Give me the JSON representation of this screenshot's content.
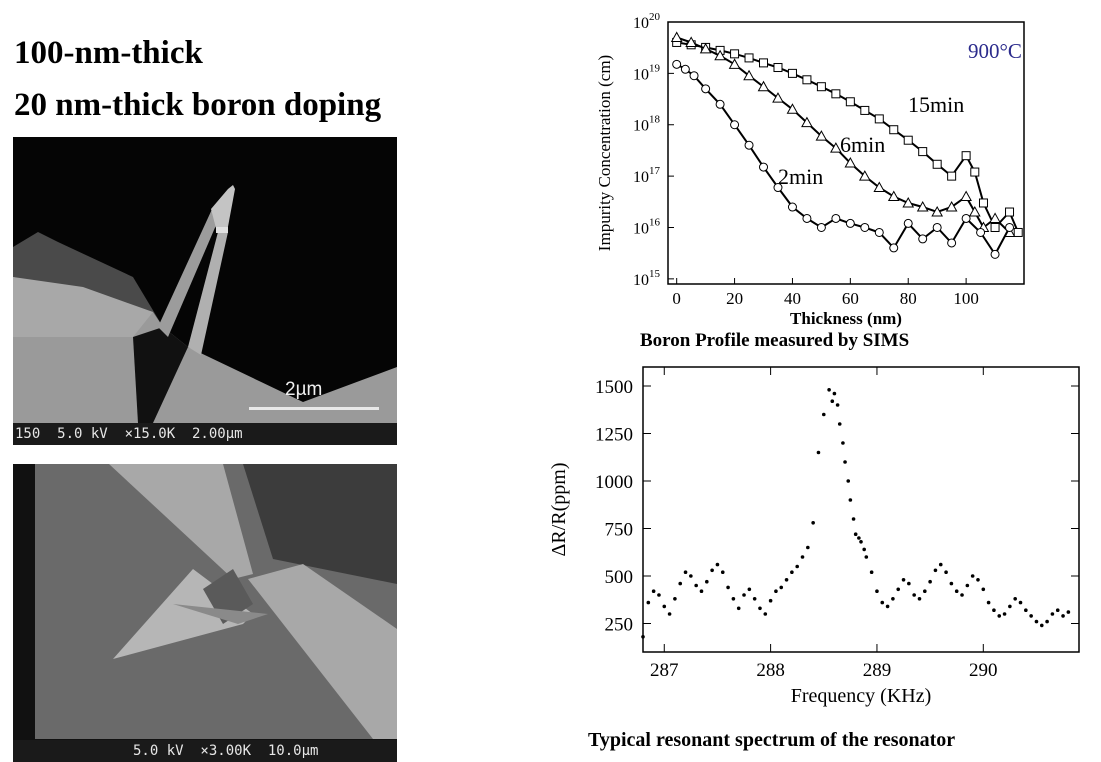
{
  "heading": {
    "line1": "100-nm-thick",
    "line2": "20 nm-thick boron doping"
  },
  "sem_images": [
    {
      "scale_label": "2µm",
      "info_bar": "150  5.0 kV  ×15.0K  2.00µm"
    },
    {
      "info_bar": "5.0 kV  ×3.00K  10.0µm"
    }
  ],
  "sims_caption": "Boron Profile measured by SIMS",
  "spectrum_caption": "Typical resonant spectrum of the resonator",
  "chart_data": [
    {
      "type": "line",
      "title": "",
      "xlabel": "Thickness (nm)",
      "ylabel": "Impurity Concentration (cm-3)",
      "ylabel_sup": "-3",
      "xlim": [
        -3,
        120
      ],
      "ylim_log10": [
        14.9,
        20
      ],
      "xscale": "linear",
      "yscale": "log",
      "x_ticks": [
        0,
        20,
        40,
        60,
        80,
        100
      ],
      "y_ticks": [
        "10^15",
        "10^16",
        "10^17",
        "10^18",
        "10^19",
        "10^20"
      ],
      "annotation": "900°C",
      "annotation_color": "#2b2b8c",
      "series": [
        {
          "name": "15min",
          "marker": "square",
          "x": [
            0,
            5,
            10,
            15,
            20,
            25,
            30,
            35,
            40,
            45,
            50,
            55,
            60,
            65,
            70,
            75,
            80,
            85,
            90,
            95,
            100,
            103,
            106,
            110,
            115,
            118
          ],
          "y": [
            4e+19,
            3.6e+19,
            3.2e+19,
            2.8e+19,
            2.4e+19,
            2e+19,
            1.6e+19,
            1.3e+19,
            1e+19,
            7.5e+18,
            5.5e+18,
            4e+18,
            2.8e+18,
            1.9e+18,
            1.3e+18,
            8e+17,
            5e+17,
            3e+17,
            1.7e+17,
            1e+17,
            2.5e+17,
            1.2e+17,
            3e+16,
            1e+16,
            2e+16,
            8000000000000000.0
          ]
        },
        {
          "name": "6min",
          "marker": "triangle",
          "x": [
            0,
            5,
            10,
            15,
            20,
            25,
            30,
            35,
            40,
            45,
            50,
            55,
            60,
            65,
            70,
            75,
            80,
            85,
            90,
            95,
            100,
            103,
            106,
            110,
            115
          ],
          "y": [
            5e+19,
            4e+19,
            3e+19,
            2.2e+19,
            1.5e+19,
            9e+18,
            5.5e+18,
            3.3e+18,
            2e+18,
            1.1e+18,
            6e+17,
            3.5e+17,
            1.8e+17,
            1e+17,
            6e+16,
            4e+16,
            3e+16,
            2.5e+16,
            2e+16,
            2.5e+16,
            4e+16,
            2e+16,
            1e+16,
            1.5e+16,
            8000000000000000.0
          ]
        },
        {
          "name": "2min",
          "marker": "circle",
          "x": [
            0,
            3,
            6,
            10,
            15,
            20,
            25,
            30,
            35,
            40,
            45,
            50,
            55,
            60,
            65,
            70,
            75,
            80,
            85,
            90,
            95,
            100,
            105,
            110,
            115
          ],
          "y": [
            1.5e+19,
            1.2e+19,
            9e+18,
            5e+18,
            2.5e+18,
            1e+18,
            4e+17,
            1.5e+17,
            6e+16,
            2.5e+16,
            1.5e+16,
            1e+16,
            1.5e+16,
            1.2e+16,
            1e+16,
            8000000000000000.0,
            4000000000000000.0,
            1.2e+16,
            6000000000000000.0,
            1e+16,
            5000000000000000.0,
            1.5e+16,
            8000000000000000.0,
            3000000000000000.0,
            1e+16
          ]
        }
      ]
    },
    {
      "type": "scatter",
      "title": "",
      "xlabel": "Frequency (KHz)",
      "ylabel": "ΔR/R(ppm)",
      "xlim": [
        286.8,
        290.9
      ],
      "ylim": [
        100,
        1600
      ],
      "x_ticks": [
        287,
        288,
        289,
        290
      ],
      "y_ticks": [
        250,
        500,
        750,
        1000,
        1250,
        1500
      ],
      "series": [
        {
          "x": [
            286.8,
            286.85,
            286.9,
            286.95,
            287.0,
            287.05,
            287.1,
            287.15,
            287.2,
            287.25,
            287.3,
            287.35,
            287.4,
            287.45,
            287.5,
            287.55,
            287.6,
            287.65,
            287.7,
            287.75,
            287.8,
            287.85,
            287.9,
            287.95,
            288.0,
            288.05,
            288.1,
            288.15,
            288.2,
            288.25,
            288.3,
            288.35,
            288.4,
            288.45,
            288.5,
            288.55,
            288.58,
            288.6,
            288.63,
            288.65,
            288.68,
            288.7,
            288.73,
            288.75,
            288.78,
            288.8,
            288.83,
            288.85,
            288.88,
            288.9,
            288.95,
            289.0,
            289.05,
            289.1,
            289.15,
            289.2,
            289.25,
            289.3,
            289.35,
            289.4,
            289.45,
            289.5,
            289.55,
            289.6,
            289.65,
            289.7,
            289.75,
            289.8,
            289.85,
            289.9,
            289.95,
            290.0,
            290.05,
            290.1,
            290.15,
            290.2,
            290.25,
            290.3,
            290.35,
            290.4,
            290.45,
            290.5,
            290.55,
            290.6,
            290.65,
            290.7,
            290.75,
            290.8
          ],
          "y": [
            180,
            360,
            420,
            400,
            340,
            300,
            380,
            460,
            520,
            500,
            450,
            420,
            470,
            530,
            560,
            520,
            440,
            380,
            330,
            400,
            430,
            380,
            330,
            300,
            370,
            420,
            440,
            480,
            520,
            550,
            600,
            650,
            780,
            1150,
            1350,
            1480,
            1420,
            1460,
            1400,
            1300,
            1200,
            1100,
            1000,
            900,
            800,
            720,
            700,
            680,
            640,
            600,
            520,
            420,
            360,
            340,
            380,
            430,
            480,
            460,
            400,
            380,
            420,
            470,
            530,
            560,
            520,
            460,
            420,
            400,
            450,
            500,
            480,
            430,
            360,
            320,
            290,
            300,
            340,
            380,
            360,
            320,
            290,
            260,
            240,
            260,
            300,
            320,
            290,
            310
          ]
        }
      ]
    }
  ]
}
